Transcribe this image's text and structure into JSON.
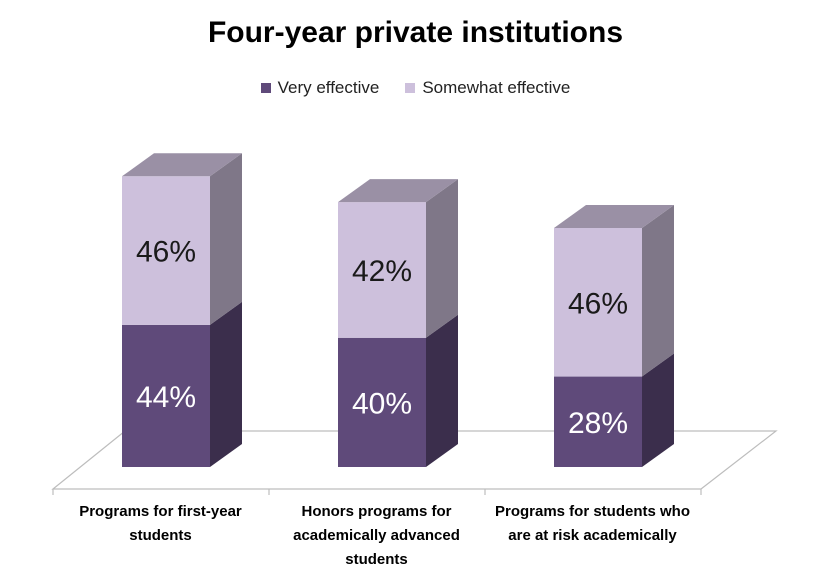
{
  "chart_data": {
    "type": "bar",
    "stacked": true,
    "three_d": true,
    "title": "Four-year private institutions",
    "categories": [
      "Programs for first-year students",
      "Honors programs for academically advanced students",
      "Programs for students who are at risk academically"
    ],
    "series": [
      {
        "name": "Very effective",
        "values": [
          44,
          40,
          28
        ],
        "labels": [
          "44%",
          "40%",
          "28%"
        ],
        "color": "#5f4a7a"
      },
      {
        "name": "Somewhat effective",
        "values": [
          46,
          42,
          46
        ],
        "labels": [
          "46%",
          "42%",
          "46%"
        ],
        "color": "#cdc0dc"
      }
    ],
    "legend_position": "top",
    "grid": false,
    "ylim": [
      0,
      100
    ]
  }
}
